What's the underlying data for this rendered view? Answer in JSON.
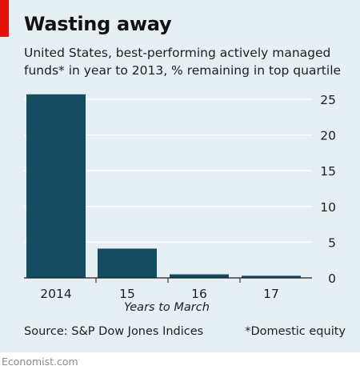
{
  "header": {
    "title": "Wasting away",
    "subtitle_lines": [
      "United States, best-performing actively managed",
      "funds* in year to 2013, % remaining in top quartile"
    ]
  },
  "footer": {
    "source": "Source: S&P Dow Jones Indices",
    "note": "*Domestic equity",
    "brand": "Economist.com"
  },
  "colors": {
    "background": "#e6eff4",
    "bar": "#144d62",
    "accent": "#e3120b"
  },
  "chart_data": {
    "type": "bar",
    "categories": [
      "2014",
      "15",
      "16",
      "17"
    ],
    "values": [
      25.7,
      4.1,
      0.5,
      0.3
    ],
    "xlabel": "Years to March",
    "ylabel": "",
    "ylim": [
      0,
      25
    ],
    "yticks": [
      0,
      5,
      10,
      15,
      20,
      25
    ],
    "y_axis_side": "right",
    "grid": true
  }
}
